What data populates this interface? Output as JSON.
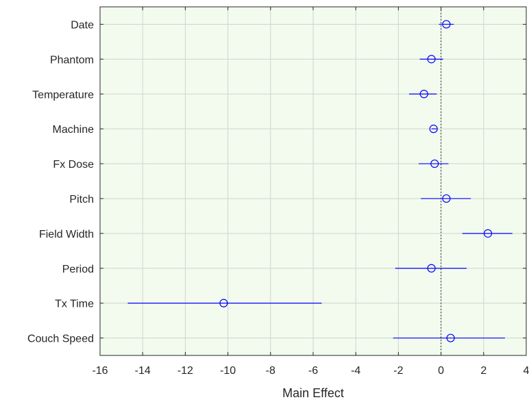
{
  "chart_data": {
    "type": "scatter",
    "title": "",
    "xlabel": "Main Effect",
    "ylabel": "",
    "xlim": [
      -16,
      4
    ],
    "xticks": [
      -16,
      -14,
      -12,
      -10,
      -8,
      -6,
      -4,
      -2,
      0,
      2,
      4
    ],
    "grid": true,
    "reference_line": {
      "x": 0,
      "style": "dotted"
    },
    "categories": [
      "Date",
      "Phantom",
      "Temperature",
      "Machine",
      "Fx Dose",
      "Pitch",
      "Field Width",
      "Period",
      "Tx Time",
      "Couch Speed"
    ],
    "estimates": [
      0.25,
      -0.45,
      -0.8,
      -0.35,
      -0.3,
      0.25,
      2.2,
      -0.45,
      -10.2,
      0.45
    ],
    "ci_lower": [
      -0.1,
      -1.0,
      -1.5,
      -0.45,
      -1.05,
      -0.95,
      1.0,
      -2.15,
      -14.7,
      -2.25
    ],
    "ci_upper": [
      0.6,
      0.1,
      -0.2,
      -0.2,
      0.35,
      1.4,
      3.35,
      1.2,
      -5.6,
      3.0
    ]
  },
  "colors": {
    "plot_background": "#f2fbee",
    "marker": "#0000ff",
    "grid": "#cfd4cd",
    "axis": "#262626"
  }
}
